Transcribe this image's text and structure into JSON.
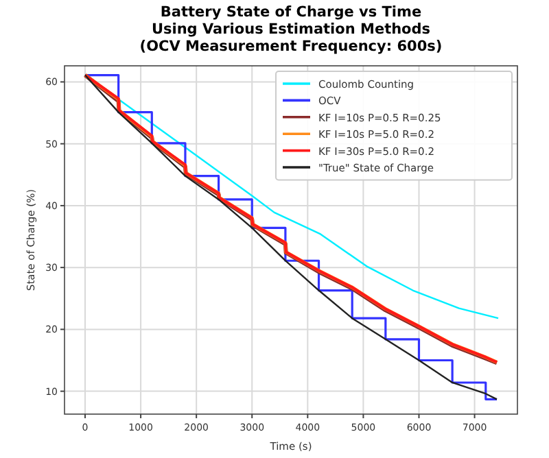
{
  "chart_data": {
    "type": "line",
    "title": "Battery State of Charge vs Time\nUsing Various Estimation Methods\n(OCV Measurement Frequency: 600s)",
    "xlabel": "Time (s)",
    "ylabel": "State of Charge (%)",
    "xlim": [
      -370,
      7770
    ],
    "ylim": [
      6.3,
      62.6
    ],
    "xticks": [
      0,
      1000,
      2000,
      3000,
      4000,
      5000,
      6000,
      7000
    ],
    "yticks": [
      10,
      20,
      30,
      40,
      50,
      60
    ],
    "grid": true,
    "legend": "top right",
    "line_style": "solid",
    "series": [
      {
        "name": "Coulomb Counting",
        "color": "#00eeff",
        "x": [
          0,
          1000,
          2000,
          3000,
          3400,
          4230,
          5060,
          5890,
          6720,
          7425
        ],
        "values": [
          61.1,
          54.6,
          48.1,
          41.6,
          38.9,
          35.4,
          30.2,
          26.3,
          23.4,
          21.8
        ]
      },
      {
        "name": "OCV",
        "type": "step",
        "color": "#3333ff",
        "x": [
          0,
          600,
          1200,
          1800,
          2400,
          3000,
          3600,
          4200,
          4800,
          5400,
          6000,
          6600,
          7200,
          7400
        ],
        "values": [
          61.1,
          55.1,
          50.1,
          44.8,
          41.0,
          36.4,
          31.1,
          26.3,
          21.8,
          18.4,
          15.0,
          11.4,
          8.7,
          8.7
        ]
      },
      {
        "name": "KF I=10s P=0.5 R=0.25",
        "color": "#8b2a2a",
        "x": [
          0,
          600,
          610,
          1200,
          1210,
          1800,
          1810,
          2400,
          2410,
          3000,
          3010,
          3600,
          3610,
          4200,
          4800,
          5400,
          6000,
          6600,
          7200,
          7400
        ],
        "values": [
          61.1,
          56.9,
          55.3,
          51.0,
          50.3,
          46.3,
          45.2,
          41.8,
          41.2,
          37.8,
          36.9,
          33.8,
          32.4,
          29.3,
          26.6,
          23.1,
          20.3,
          17.4,
          15.3,
          14.6
        ]
      },
      {
        "name": "KF I=10s P=5.0 R=0.2",
        "color": "#ff8c1a",
        "x": [
          0,
          600,
          610,
          1200,
          1210,
          1800,
          1810,
          2400,
          2410,
          3000,
          3010,
          3600,
          3610,
          4200,
          4800,
          5400,
          6000,
          6600,
          7200,
          7400
        ],
        "values": [
          61.1,
          57.2,
          55.4,
          51.2,
          50.4,
          46.5,
          45.3,
          42.0,
          41.3,
          38.0,
          37.0,
          34.0,
          32.5,
          29.5,
          26.8,
          23.3,
          20.5,
          17.6,
          15.5,
          14.7
        ]
      },
      {
        "name": "KF I=30s P=5.0 R=0.2",
        "color": "#ff1a1a",
        "x": [
          0,
          600,
          610,
          1200,
          1210,
          1800,
          1810,
          2400,
          2410,
          3000,
          3010,
          3600,
          3610,
          4200,
          4800,
          5400,
          6000,
          6600,
          7200,
          7400
        ],
        "values": [
          61.1,
          57.3,
          55.4,
          51.3,
          50.4,
          46.6,
          45.3,
          42.0,
          41.3,
          38.0,
          37.0,
          34.0,
          32.5,
          29.5,
          26.8,
          23.3,
          20.5,
          17.6,
          15.5,
          14.7
        ]
      },
      {
        "name": "\"True\" State of Charge",
        "color": "#222222",
        "x": [
          0,
          600,
          1200,
          1800,
          2400,
          3000,
          3600,
          4200,
          4800,
          5400,
          6000,
          6600,
          7200,
          7400
        ],
        "values": [
          61.1,
          55.1,
          50.1,
          44.8,
          41.0,
          36.4,
          31.1,
          26.3,
          21.8,
          18.4,
          15.0,
          11.4,
          9.6,
          8.7
        ]
      }
    ]
  }
}
